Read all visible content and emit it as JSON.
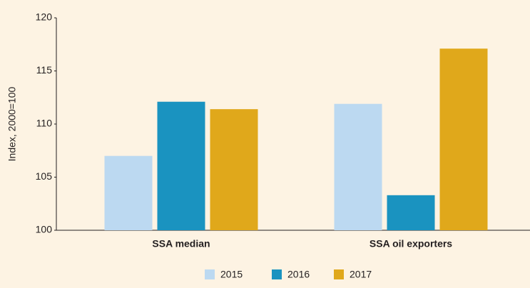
{
  "chart_data": {
    "type": "bar",
    "y_label": "Index, 2000=100",
    "categories": [
      "SSA median",
      "SSA oil exporters"
    ],
    "series": [
      {
        "name": "2015",
        "color": "#bcd9f1",
        "values": [
          107.0,
          111.9
        ]
      },
      {
        "name": "2016",
        "color": "#1a93c0",
        "values": [
          112.1,
          103.3
        ]
      },
      {
        "name": "2017",
        "color": "#e0a81b",
        "values": [
          111.4,
          117.1
        ]
      }
    ],
    "ylim": [
      100,
      120
    ],
    "yticks": [
      100,
      105,
      110,
      115,
      120
    ],
    "grid": false,
    "legend": "bottom"
  }
}
